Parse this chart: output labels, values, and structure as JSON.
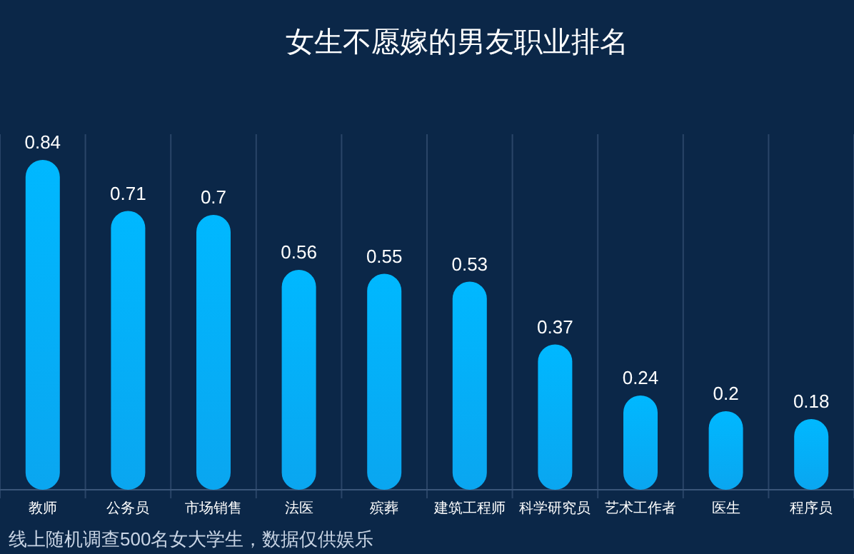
{
  "chart_data": {
    "type": "bar",
    "title": "女生不愿嫁的男友职业排名",
    "categories": [
      "教师",
      "公务员",
      "市场销售",
      "法医",
      "殡葬",
      "建筑工程师",
      "科学研究员",
      "艺术工作者",
      "医生",
      "程序员"
    ],
    "values": [
      0.84,
      0.71,
      0.7,
      0.56,
      0.55,
      0.53,
      0.37,
      0.24,
      0.2,
      0.18
    ],
    "color": "#0aa6f0",
    "data_labels": true,
    "grid": "x",
    "annotations": [
      "线上随机调查500名女大学生，数据仅供娱乐"
    ]
  }
}
